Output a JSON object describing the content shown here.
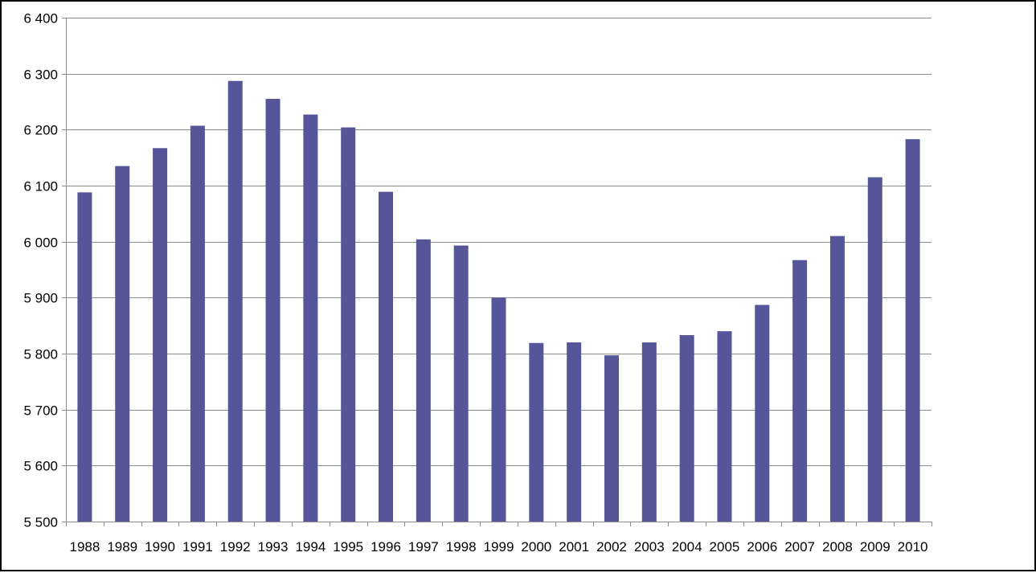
{
  "chart_data": {
    "type": "bar",
    "title": "",
    "xlabel": "",
    "ylabel": "",
    "categories": [
      "1988",
      "1989",
      "1990",
      "1991",
      "1992",
      "1993",
      "1994",
      "1995",
      "1996",
      "1997",
      "1998",
      "1999",
      "2000",
      "2001",
      "2002",
      "2003",
      "2004",
      "2005",
      "2006",
      "2007",
      "2008",
      "2009",
      "2010"
    ],
    "values": [
      6088,
      6135,
      6167,
      6207,
      6287,
      6255,
      6227,
      6204,
      6089,
      6004,
      5993,
      5900,
      5819,
      5820,
      5797,
      5820,
      5833,
      5840,
      5887,
      5967,
      6010,
      6115,
      6183
    ],
    "ylim": [
      5500,
      6400
    ],
    "y_ticks": [
      5500,
      5600,
      5700,
      5800,
      5900,
      6000,
      6100,
      6200,
      6300,
      6400
    ],
    "y_tick_labels": [
      "5 500",
      "5 600",
      "5 700",
      "5 800",
      "5 900",
      "6 000",
      "6 100",
      "6 200",
      "6 300",
      "6 400"
    ],
    "grid": true,
    "legend": "none",
    "bar_color": "#555599",
    "grid_color": "#8c8c8c",
    "axis_color": "#8c8c8c"
  }
}
